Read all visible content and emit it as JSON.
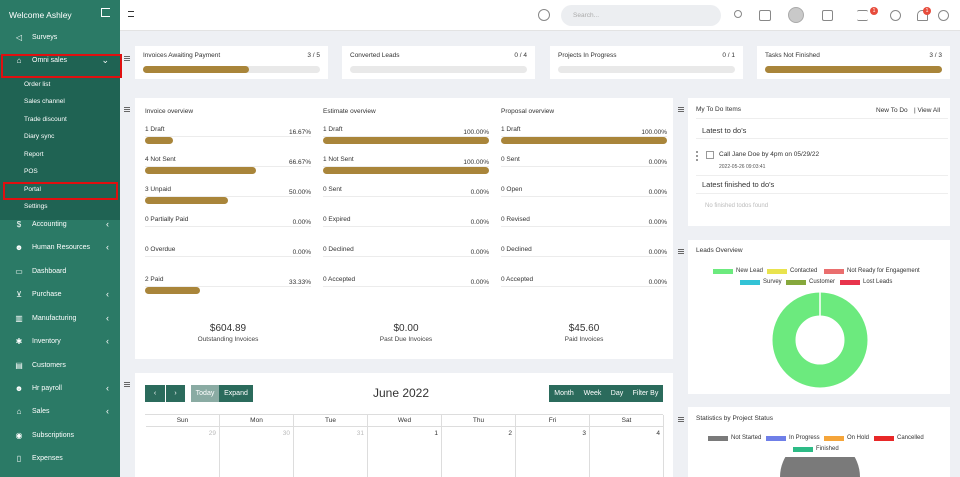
{
  "sidebar": {
    "welcome": "Welcome Ashley",
    "items": [
      {
        "label": "Surveys",
        "icon": "megaphone-icon"
      },
      {
        "label": "Omni sales",
        "icon": "basket-icon"
      },
      {
        "label": "Accounting",
        "icon": "dollar-icon"
      },
      {
        "label": "Human Resources",
        "icon": "users-icon"
      },
      {
        "label": "Dashboard",
        "icon": "monitor-icon"
      },
      {
        "label": "Purchase",
        "icon": "cart-icon"
      },
      {
        "label": "Manufacturing",
        "icon": "factory-icon"
      },
      {
        "label": "Inventory",
        "icon": "snowflake-icon"
      },
      {
        "label": "Customers",
        "icon": "address-card-icon"
      },
      {
        "label": "Hr payroll",
        "icon": "users-icon"
      },
      {
        "label": "Sales",
        "icon": "bank-icon"
      },
      {
        "label": "Subscriptions",
        "icon": "eye-icon"
      },
      {
        "label": "Expenses",
        "icon": "file-icon"
      }
    ],
    "subitems": [
      "Order list",
      "Sales channel",
      "Trade discount",
      "Diary sync",
      "Report",
      "POS",
      "Portal",
      "Settings"
    ]
  },
  "topbar": {
    "search_placeholder": "Search...",
    "badges": [
      "1",
      "1"
    ]
  },
  "summary": [
    {
      "label": "Invoices Awaiting Payment",
      "count": "3 / 5",
      "progress": 0.6
    },
    {
      "label": "Converted Leads",
      "count": "0 / 4",
      "progress": 0
    },
    {
      "label": "Projects In Progress",
      "count": "0 / 1",
      "progress": 0
    },
    {
      "label": "Tasks Not Finished",
      "count": "3 / 3",
      "progress": 1
    }
  ],
  "overview": [
    {
      "title": "Invoice overview",
      "rows": [
        {
          "label": "1 Draft",
          "pct": "16.67%",
          "v": 0.1667
        },
        {
          "label": "4 Not Sent",
          "pct": "66.67%",
          "v": 0.6667
        },
        {
          "label": "3 Unpaid",
          "pct": "50.00%",
          "v": 0.5
        },
        {
          "label": "0 Partially Paid",
          "pct": "0.00%",
          "v": 0
        },
        {
          "label": "0 Overdue",
          "pct": "0.00%",
          "v": 0
        },
        {
          "label": "2 Paid",
          "pct": "33.33%",
          "v": 0.3333
        }
      ],
      "amount": "$604.89",
      "amount_label": "Outstanding Invoices"
    },
    {
      "title": "Estimate overview",
      "rows": [
        {
          "label": "1 Draft",
          "pct": "100.00%",
          "v": 1
        },
        {
          "label": "1 Not Sent",
          "pct": "100.00%",
          "v": 1
        },
        {
          "label": "0 Sent",
          "pct": "0.00%",
          "v": 0
        },
        {
          "label": "0 Expired",
          "pct": "0.00%",
          "v": 0
        },
        {
          "label": "0 Declined",
          "pct": "0.00%",
          "v": 0
        },
        {
          "label": "0 Accepted",
          "pct": "0.00%",
          "v": 0
        }
      ],
      "amount": "$0.00",
      "amount_label": "Past Due Invoices"
    },
    {
      "title": "Proposal overview",
      "rows": [
        {
          "label": "1 Draft",
          "pct": "100.00%",
          "v": 1
        },
        {
          "label": "0 Sent",
          "pct": "0.00%",
          "v": 0
        },
        {
          "label": "0 Open",
          "pct": "0.00%",
          "v": 0
        },
        {
          "label": "0 Revised",
          "pct": "0.00%",
          "v": 0
        },
        {
          "label": "0 Declined",
          "pct": "0.00%",
          "v": 0
        },
        {
          "label": "0 Accepted",
          "pct": "0.00%",
          "v": 0
        }
      ],
      "amount": "$45.60",
      "amount_label": "Paid Invoices"
    }
  ],
  "calendar": {
    "title": "June 2022",
    "buttons": {
      "today": "Today",
      "expand": "Expand",
      "month": "Month",
      "week": "Week",
      "day": "Day",
      "filter": "Filter By"
    },
    "weekdays": [
      "Sun",
      "Mon",
      "Tue",
      "Wed",
      "Thu",
      "Fri",
      "Sat"
    ],
    "first_week": [
      "29",
      "30",
      "31",
      "1",
      "2",
      "3",
      "4"
    ]
  },
  "todo": {
    "title": "My To Do Items",
    "new_link": "New To Do",
    "view_all": "| View All",
    "latest": "Latest to do's",
    "item": "Call Jane Doe by 4pm on 05/29/22",
    "item_date": "2022-05-26 09:03:41",
    "finished": "Latest finished to do's",
    "no_finished": "No finished todos found"
  },
  "leads": {
    "title": "Leads Overview",
    "legend": [
      {
        "name": "New Lead",
        "color": "#6cea7e"
      },
      {
        "name": "Contacted",
        "color": "#e9e34e"
      },
      {
        "name": "Not Ready for Engagement",
        "color": "#ea6e6e"
      },
      {
        "name": "Survey",
        "color": "#33c3d6"
      },
      {
        "name": "Customer",
        "color": "#86a83c"
      },
      {
        "name": "Lost Leads",
        "color": "#e8344c"
      }
    ]
  },
  "status": {
    "title": "Statistics by Project Status",
    "legend": [
      {
        "name": "Not Started",
        "color": "#7a7a7a"
      },
      {
        "name": "In Progress",
        "color": "#6f7fe8"
      },
      {
        "name": "On Hold",
        "color": "#f5a53a"
      },
      {
        "name": "Cancelled",
        "color": "#e82828"
      },
      {
        "name": "Finished",
        "color": "#2dbb86"
      }
    ]
  }
}
